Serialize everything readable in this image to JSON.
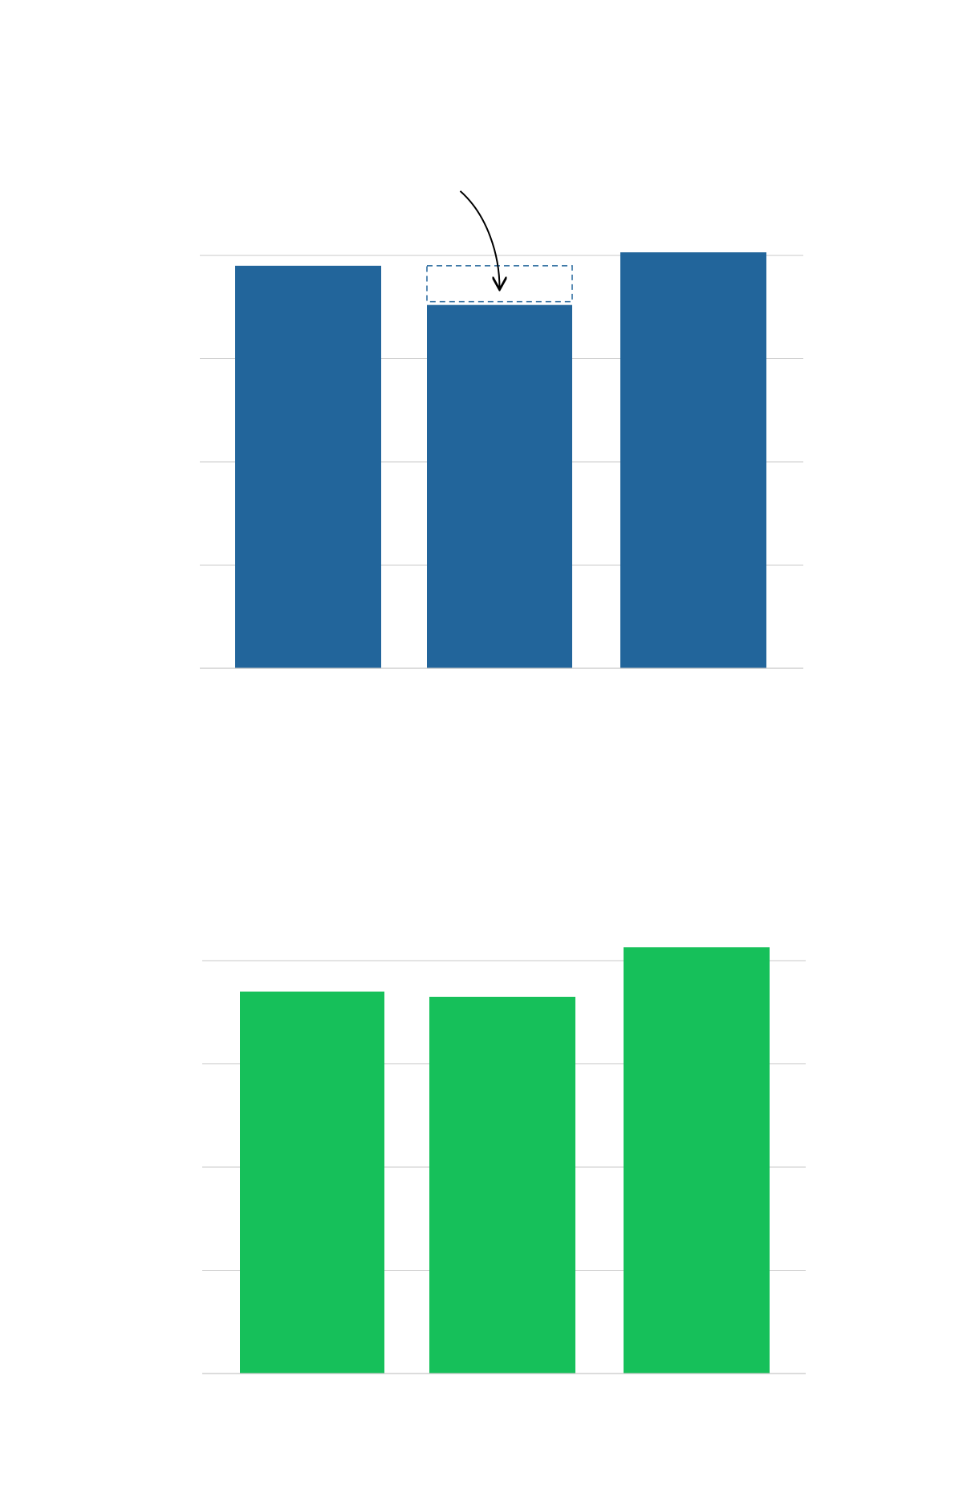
{
  "chart_data": [
    {
      "type": "bar",
      "categories": [
        "",
        "",
        ""
      ],
      "values": [
        3.9,
        3.52,
        4.03
      ],
      "ylim": [
        0,
        4
      ],
      "grid": true,
      "color": "#22659b",
      "annotation": {
        "type": "dashed-box-with-arrow",
        "target_index": 1,
        "from_value": 3.9,
        "to_value": 3.52,
        "color": "#22659b",
        "arrow_color": "#000000"
      }
    },
    {
      "type": "bar",
      "categories": [
        "",
        "",
        ""
      ],
      "values": [
        3.7,
        3.65,
        4.13
      ],
      "ylim": [
        0,
        4
      ],
      "grid": true,
      "color": "#16c05a"
    }
  ]
}
